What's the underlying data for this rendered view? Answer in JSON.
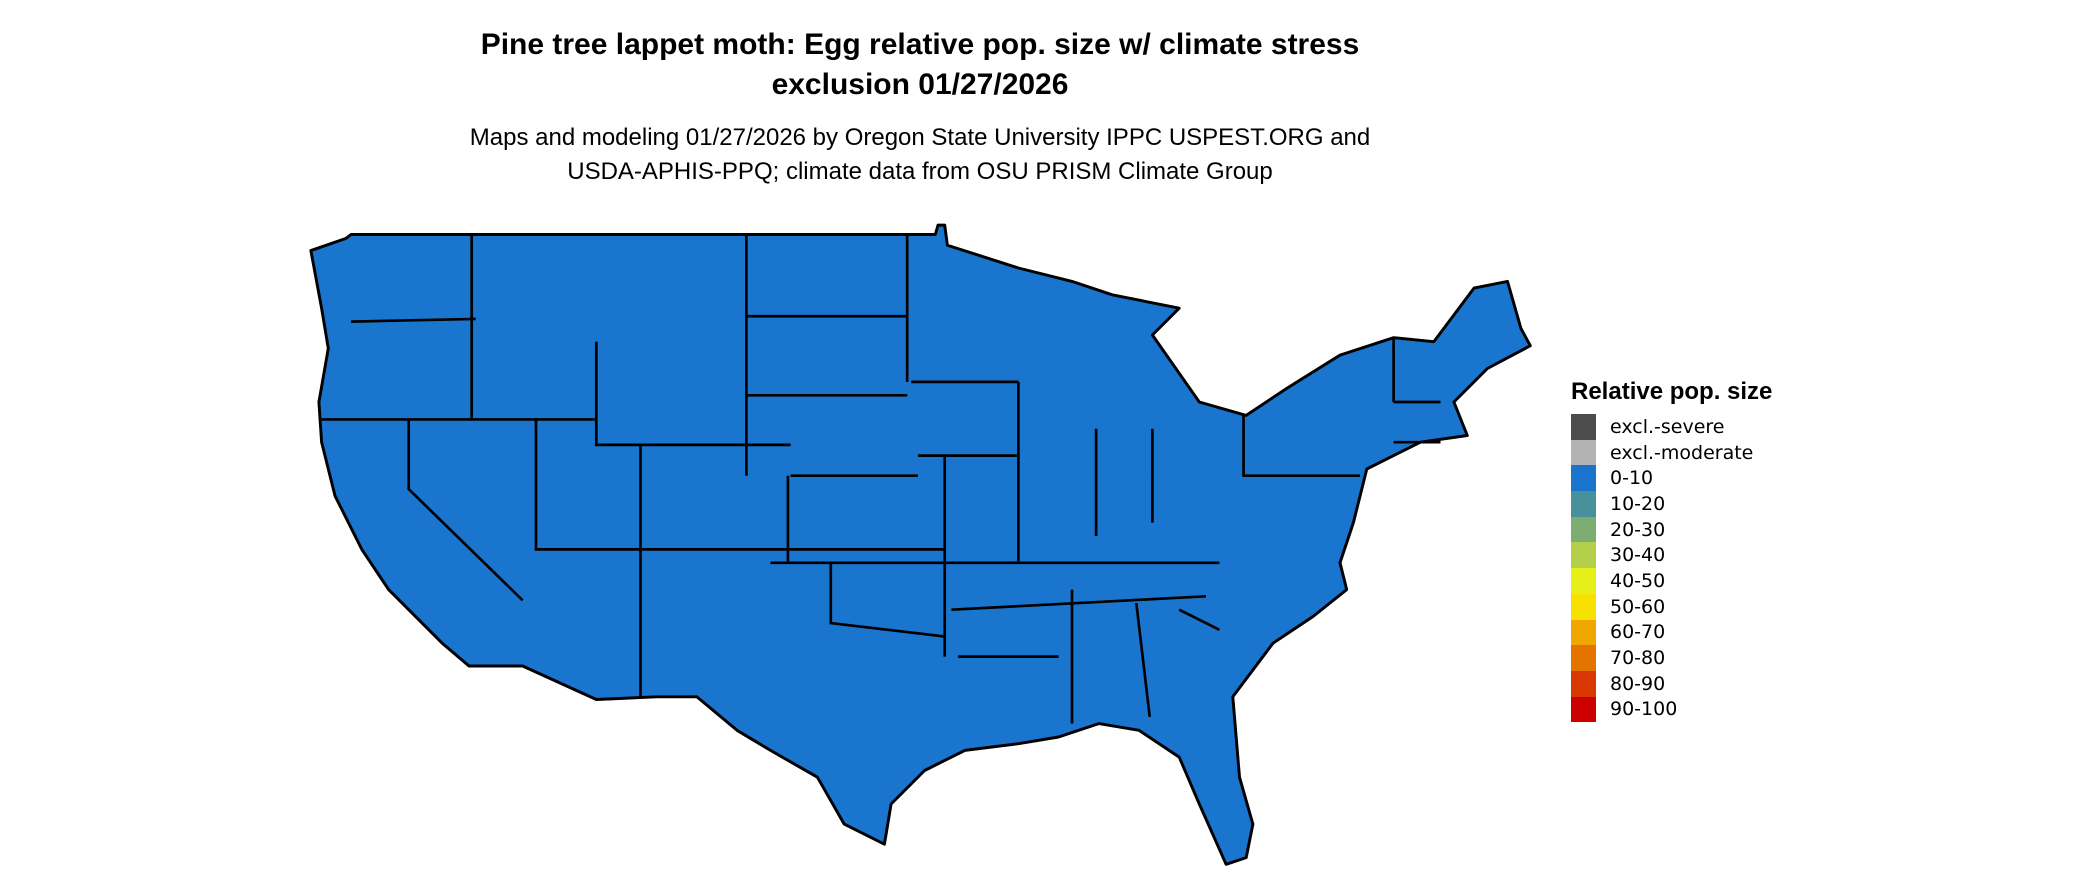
{
  "title": {
    "line1": "Pine tree lappet moth: Egg relative pop. size w/ climate stress",
    "line2": "exclusion 01/27/2026"
  },
  "subtitle": {
    "line1": "Maps and modeling 01/27/2026 by Oregon State University IPPC USPEST.ORG and",
    "line2": "USDA-APHIS-PPQ; climate data from OSU PRISM Climate Group"
  },
  "map": {
    "region": "Contiguous United States",
    "fill_color": "#1a75cf",
    "fill_category": "0-10",
    "border_color": "#000000"
  },
  "legend": {
    "title": "Relative pop. size",
    "items": [
      {
        "label": "excl.-severe",
        "color": "#4d4d4d"
      },
      {
        "label": "excl.-moderate",
        "color": "#b3b3b3"
      },
      {
        "label": "0-10",
        "color": "#1874cd"
      },
      {
        "label": "10-20",
        "color": "#48909c"
      },
      {
        "label": "20-30",
        "color": "#7cae74"
      },
      {
        "label": "30-40",
        "color": "#b4d04a"
      },
      {
        "label": "40-50",
        "color": "#e5f019"
      },
      {
        "label": "50-60",
        "color": "#f8e000"
      },
      {
        "label": "60-70",
        "color": "#f0a800"
      },
      {
        "label": "70-80",
        "color": "#e57300"
      },
      {
        "label": "80-90",
        "color": "#d93800"
      },
      {
        "label": "90-100",
        "color": "#cc0000"
      }
    ]
  }
}
